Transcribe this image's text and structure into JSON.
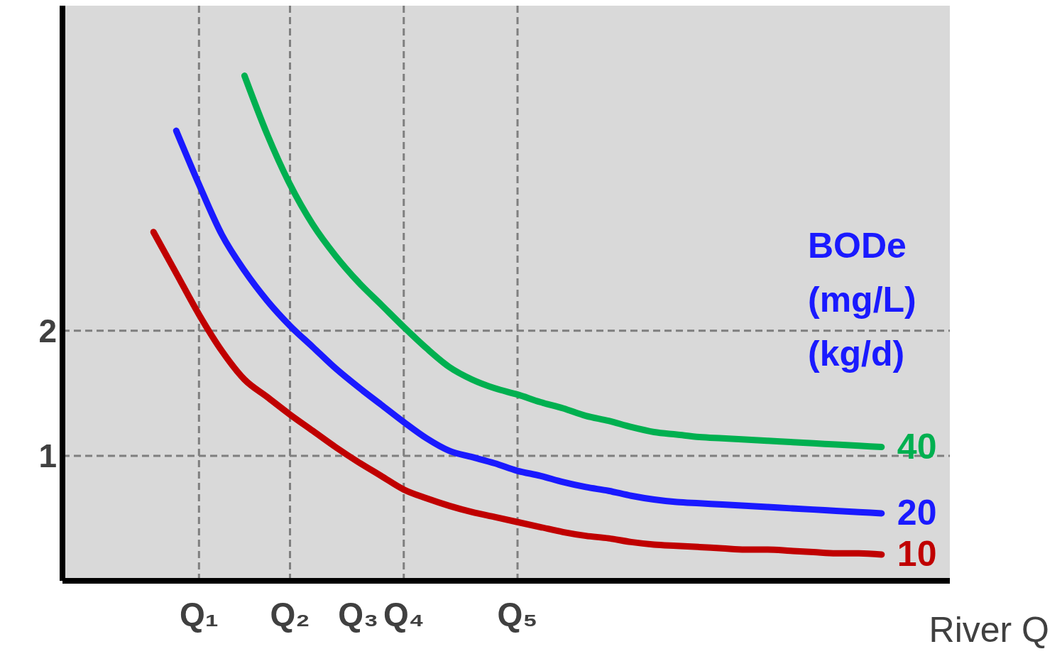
{
  "chart_data": {
    "type": "line",
    "xlabel": "River Q",
    "legend_title": "BODe (mg/L) (kg/d)",
    "ylim": [
      0,
      4.6
    ],
    "yticks": [
      1,
      2
    ],
    "grid": false,
    "marker": "none",
    "line_style": "solid",
    "categories": [
      null,
      null,
      null,
      null,
      null,
      null,
      "Q₁",
      null,
      null,
      null,
      "Q₂",
      null,
      null,
      "Q₃",
      null,
      "Q₄",
      null,
      null,
      null,
      null,
      "Q₅",
      null,
      null,
      null,
      null,
      null,
      null,
      null,
      null,
      null,
      null,
      null,
      null,
      null,
      null,
      null,
      null,
      null,
      null,
      null
    ],
    "series": [
      {
        "name": "10",
        "color": "#c00000",
        "values": [
          null,
          null,
          null,
          null,
          2.79,
          2.46,
          2.13,
          1.84,
          1.61,
          1.47,
          1.33,
          1.2,
          1.07,
          0.95,
          0.84,
          0.73,
          0.66,
          0.6,
          0.55,
          0.51,
          0.47,
          0.43,
          0.39,
          0.36,
          0.34,
          0.31,
          0.29,
          0.28,
          0.27,
          0.26,
          0.25,
          0.25,
          0.24,
          0.23,
          0.22,
          0.22,
          0.21,
          null,
          null,
          null
        ]
      },
      {
        "name": "20",
        "color": "#1a1aff",
        "values": [
          null,
          null,
          null,
          null,
          null,
          3.6,
          3.17,
          2.77,
          2.48,
          2.24,
          2.04,
          1.87,
          1.7,
          1.55,
          1.41,
          1.27,
          1.14,
          1.04,
          0.99,
          0.94,
          0.88,
          0.84,
          0.79,
          0.75,
          0.72,
          0.68,
          0.65,
          0.63,
          0.62,
          0.61,
          0.6,
          0.59,
          0.58,
          0.57,
          0.56,
          0.55,
          0.54,
          null,
          null,
          null
        ]
      },
      {
        "name": "40",
        "color": "#00b050",
        "values": [
          null,
          null,
          null,
          null,
          null,
          null,
          null,
          null,
          4.04,
          3.57,
          3.17,
          2.85,
          2.6,
          2.39,
          2.21,
          2.03,
          1.86,
          1.71,
          1.61,
          1.54,
          1.49,
          1.43,
          1.38,
          1.32,
          1.28,
          1.23,
          1.19,
          1.17,
          1.15,
          1.14,
          1.13,
          1.12,
          1.11,
          1.1,
          1.09,
          1.08,
          1.07,
          null,
          null,
          null
        ]
      }
    ],
    "ref_lines": [
      {
        "axis": "y",
        "value": 2,
        "color": "#7f7f7f",
        "line_style": "dashed"
      },
      {
        "axis": "y",
        "value": 1,
        "color": "#7f7f7f",
        "line_style": "dashed"
      },
      {
        "axis": "x",
        "value": "Q₁",
        "color": "#7f7f7f",
        "line_style": "dashed"
      },
      {
        "axis": "x",
        "value": "Q₂",
        "color": "#7f7f7f",
        "line_style": "dashed"
      },
      {
        "axis": "x",
        "value": "Q₄",
        "color": "#7f7f7f",
        "line_style": "dashed"
      },
      {
        "axis": "x",
        "value": "Q₅",
        "color": "#7f7f7f",
        "line_style": "dashed"
      }
    ]
  }
}
